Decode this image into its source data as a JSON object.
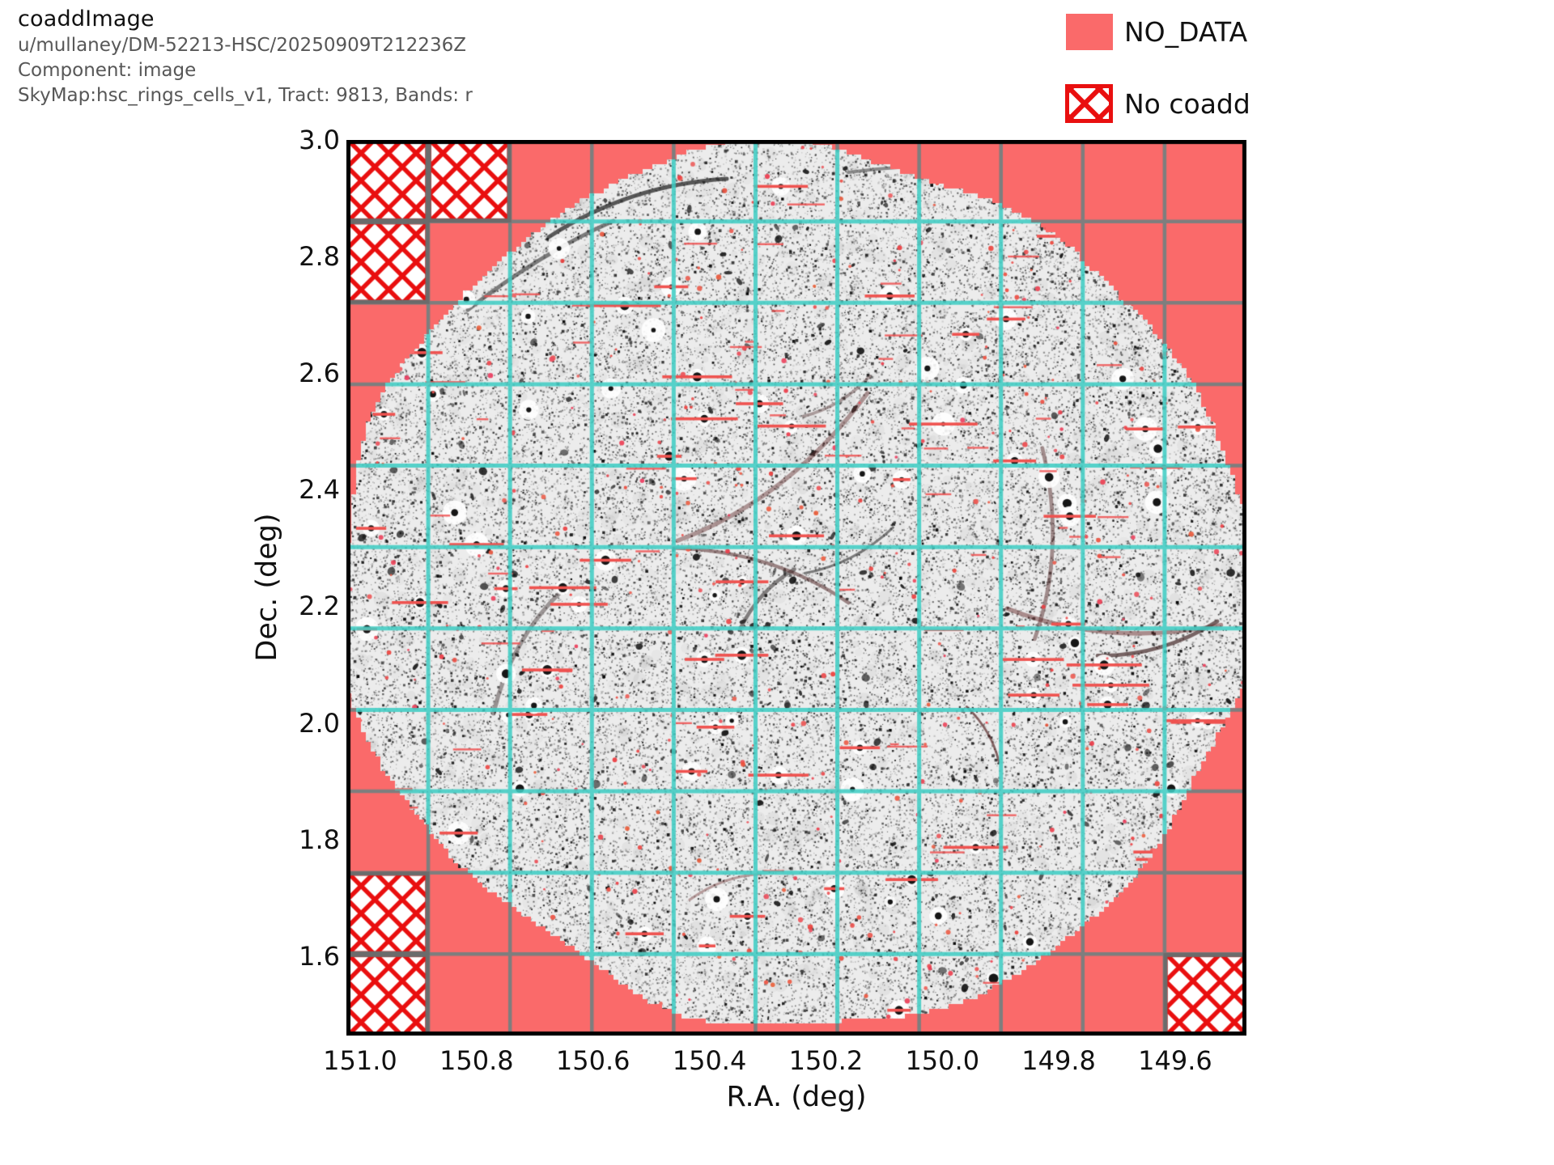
{
  "header": {
    "title": "coaddImage",
    "collection": "u/mullaney/DM-52213-HSC/20250909T212236Z",
    "component": "Component: image",
    "skymap_line": "SkyMap:hsc_rings_cells_v1, Tract: 9813, Bands: r"
  },
  "legend": {
    "items": [
      {
        "label": "NO_DATA",
        "swatch": "filled-square"
      },
      {
        "label": "No coadd",
        "swatch": "red-crosshatch-square"
      }
    ]
  },
  "colors": {
    "no_data": "#fa6a6a",
    "no_coadd_hatch": "#e90f0f",
    "patch_grid_over_data": "#3fccc3",
    "patch_grid_over_nodata": "#7e7e7e",
    "patch_border_gray": "#6b6b6b",
    "spine": "#000000",
    "image_background": "#ececec",
    "header_subtitle": "#575757",
    "masked_source_red": "#ef5350"
  },
  "chart_data": {
    "type": "heatmap",
    "title": "coaddImage",
    "subtitle": "u/mullaney/DM-52213-HSC/20250909T212236Z, Component: image, SkyMap:hsc_rings_cells_v1, Tract: 9813, Bands: r",
    "xlabel": "R.A. (deg)",
    "ylabel": "Dec. (deg)",
    "x_axis": {
      "range": [
        151.0236,
        149.4776
      ],
      "inverted": true,
      "ticks": [
        151.0,
        150.8,
        150.6,
        150.4,
        150.2,
        150.0,
        149.8,
        149.6
      ],
      "tick_labels": [
        "151.0",
        "150.8",
        "150.6",
        "150.4",
        "150.2",
        "150.0",
        "149.8",
        "149.6"
      ]
    },
    "y_axis": {
      "range": [
        3.0,
        1.4636
      ],
      "ticks": [
        3.0,
        2.8,
        2.6,
        2.4,
        2.2,
        2.0,
        1.8,
        1.6
      ],
      "tick_labels": [
        "3.0",
        "2.8",
        "2.6",
        "2.4",
        "2.2",
        "2.0",
        "1.8",
        "1.6"
      ]
    },
    "skymap": {
      "name": "hsc_rings_cells_v1",
      "tract": 9813,
      "bands": "r"
    },
    "patch_grid": {
      "cols": 11,
      "rows": 11,
      "grid_on": true
    },
    "coverage": {
      "shape": "irregular-circle",
      "center_ra_deg": 150.25,
      "center_dec_deg": 2.23,
      "radius_deg": 0.775
    },
    "no_coadd_patch_cells": [
      [
        0,
        0
      ],
      [
        1,
        0
      ],
      [
        0,
        1
      ],
      [
        0,
        9
      ],
      [
        0,
        10
      ],
      [
        10,
        10
      ]
    ],
    "legend_entries": [
      "NO_DATA",
      "No coadd"
    ],
    "legend_position": "upper-right-outside"
  }
}
